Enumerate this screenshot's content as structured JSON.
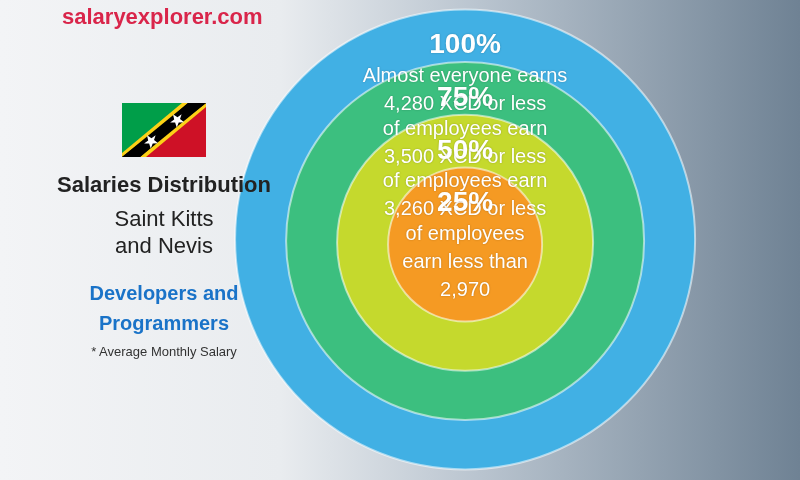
{
  "chart_data": {
    "type": "bubble",
    "site": "salaryexplorer.com",
    "title": "Salaries Distribution",
    "subtitle": "Saint Kitts and Nevis",
    "category": "Developers and Programmers",
    "note": "* Average Monthly Salary",
    "tick_labels": false,
    "percentiles": [
      100,
      75,
      50,
      25
    ],
    "percentile_labels": [
      "100%",
      "75%",
      "50%",
      "25%"
    ],
    "captions": [
      "Almost everyone earns",
      "of employees earn",
      "of employees earn",
      "of employees earn less than"
    ],
    "values": [
      4280,
      3500,
      3260,
      2970
    ],
    "value_labels": [
      "4,280 XCD or less",
      "3,500 XCD or less",
      "3,260 XCD or less",
      "2,970"
    ],
    "colors": [
      "#41b0e4",
      "#3cbf7f",
      "#c5d92d",
      "#f59a23"
    ]
  }
}
